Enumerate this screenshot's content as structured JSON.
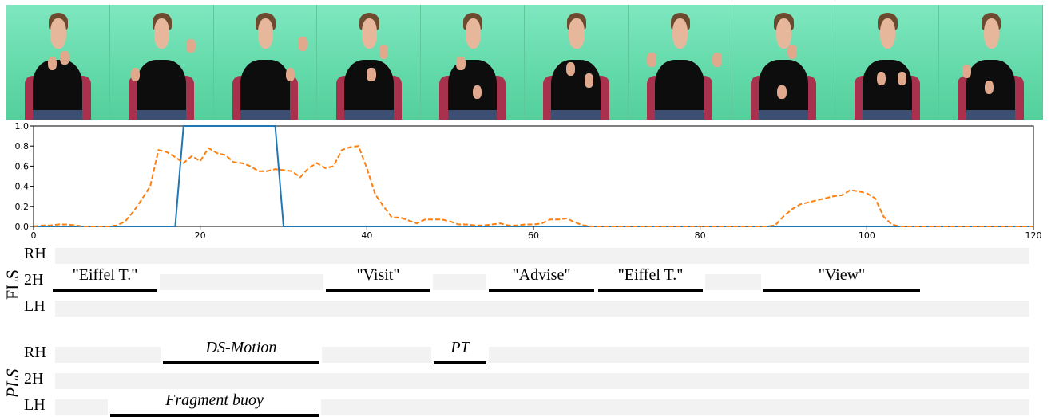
{
  "frames": {
    "count": 10
  },
  "chart_data": {
    "type": "line",
    "xlim": [
      0,
      120
    ],
    "ylim": [
      0.0,
      1.0
    ],
    "xticks": [
      0,
      20,
      40,
      60,
      80,
      100,
      120
    ],
    "yticks": [
      0.0,
      0.2,
      0.4,
      0.6,
      0.8,
      1.0
    ],
    "xtick_labels": [
      "0",
      "20",
      "40",
      "60",
      "80",
      "100",
      "120"
    ],
    "ytick_labels": [
      "0.0",
      "0.2",
      "0.4",
      "0.6",
      "0.8",
      "1.0"
    ],
    "grid": false,
    "series": [
      {
        "color": "#1f77b4",
        "style": "solid",
        "x": [
          0,
          17,
          18,
          29,
          30,
          120
        ],
        "y": [
          0,
          0,
          1.0,
          1.0,
          0,
          0
        ]
      },
      {
        "color": "#ff7f0e",
        "style": "dashed",
        "x": [
          0,
          1,
          2,
          3,
          4,
          5,
          6,
          7,
          8,
          9,
          10,
          11,
          12,
          13,
          14,
          15,
          16,
          17,
          18,
          19,
          20,
          21,
          22,
          23,
          24,
          25,
          26,
          27,
          28,
          29,
          30,
          31,
          32,
          33,
          34,
          35,
          36,
          37,
          38,
          39,
          40,
          41,
          42,
          43,
          44,
          45,
          46,
          47,
          48,
          49,
          50,
          51,
          52,
          53,
          54,
          55,
          56,
          57,
          58,
          59,
          60,
          61,
          62,
          63,
          64,
          65,
          66,
          67,
          70,
          80,
          88,
          89,
          90,
          91,
          92,
          93,
          94,
          95,
          96,
          97,
          98,
          99,
          100,
          101,
          102,
          103,
          104,
          110,
          120
        ],
        "y": [
          0.0,
          0.01,
          0.01,
          0.02,
          0.02,
          0.01,
          0.0,
          0.0,
          0.0,
          0.0,
          0.01,
          0.05,
          0.15,
          0.27,
          0.4,
          0.76,
          0.74,
          0.69,
          0.63,
          0.7,
          0.65,
          0.78,
          0.73,
          0.71,
          0.64,
          0.63,
          0.6,
          0.55,
          0.55,
          0.57,
          0.56,
          0.55,
          0.49,
          0.58,
          0.63,
          0.58,
          0.6,
          0.76,
          0.79,
          0.8,
          0.58,
          0.32,
          0.2,
          0.09,
          0.09,
          0.06,
          0.03,
          0.07,
          0.07,
          0.07,
          0.05,
          0.02,
          0.02,
          0.01,
          0.01,
          0.02,
          0.03,
          0.01,
          0.01,
          0.02,
          0.02,
          0.03,
          0.07,
          0.07,
          0.08,
          0.04,
          0.01,
          0.0,
          0.0,
          0.0,
          0.0,
          0.01,
          0.1,
          0.17,
          0.22,
          0.24,
          0.26,
          0.28,
          0.3,
          0.31,
          0.36,
          0.35,
          0.33,
          0.28,
          0.1,
          0.02,
          0.0,
          0.0,
          0.0
        ]
      }
    ]
  },
  "annotations": {
    "groups": [
      {
        "label": "FLS",
        "rows": [
          {
            "label": "RH",
            "segments": []
          },
          {
            "label": "2H",
            "segments": [
              {
                "text": "\"Eiffel T.\"",
                "start": 66,
                "end": 197
              },
              {
                "text": "\"Visit\"",
                "start": 408,
                "end": 539
              },
              {
                "text": "\"Advise\"",
                "start": 612,
                "end": 744
              },
              {
                "text": "\"Eiffel T.\"",
                "start": 749,
                "end": 880
              },
              {
                "text": "\"View\"",
                "start": 956,
                "end": 1152
              }
            ]
          },
          {
            "label": "LH",
            "segments": []
          }
        ]
      },
      {
        "label": "PLS",
        "rows": [
          {
            "label": "RH",
            "segments": [
              {
                "text": "DS-Motion",
                "start": 204,
                "end": 400
              },
              {
                "text": "PT",
                "start": 543,
                "end": 609
              }
            ]
          },
          {
            "label": "2H",
            "segments": []
          },
          {
            "label": "LH",
            "segments": [
              {
                "text": "Fragment buoy",
                "start": 138,
                "end": 399
              }
            ]
          }
        ]
      }
    ]
  }
}
